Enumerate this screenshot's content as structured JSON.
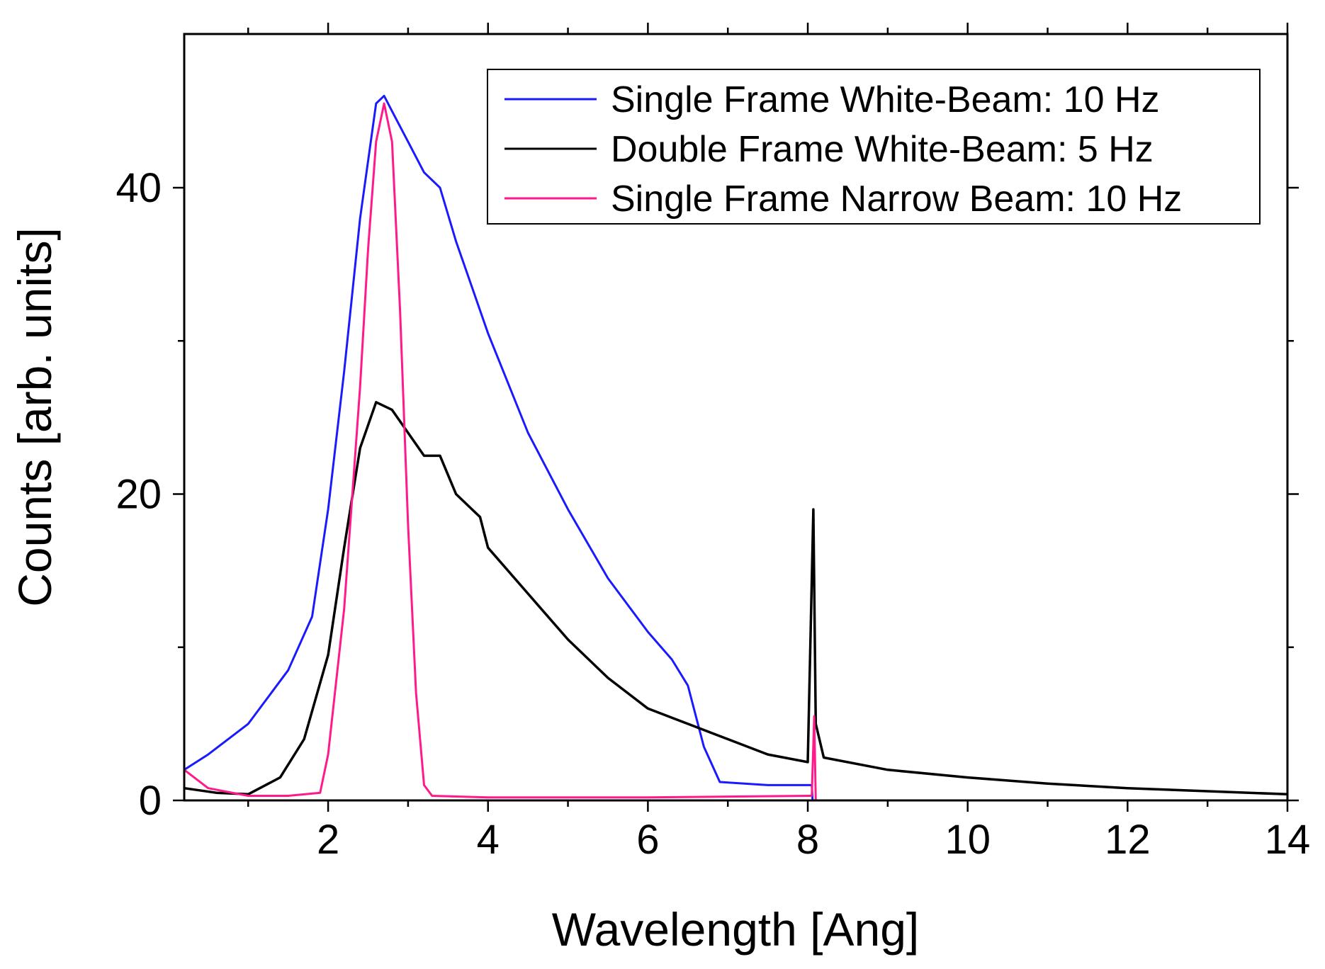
{
  "chart_data": {
    "type": "line",
    "title": "",
    "xlabel": "Wavelength [Ang]",
    "ylabel": "Counts [arb. units]",
    "xlim": [
      0.2,
      14
    ],
    "ylim": [
      0,
      50
    ],
    "x_ticks": [
      2,
      4,
      6,
      8,
      10,
      12,
      14
    ],
    "x_tick_labels": [
      "2",
      "4",
      "6",
      "8",
      "10",
      "12",
      "14"
    ],
    "y_ticks": [
      0,
      20,
      40
    ],
    "y_tick_labels": [
      "0",
      "20",
      "40"
    ],
    "legend_position": "top-right",
    "series": [
      {
        "name": "Single Frame White-Beam: 10 Hz",
        "color": "#1a1aff",
        "x": [
          0.2,
          0.5,
          1.0,
          1.5,
          1.8,
          2.0,
          2.2,
          2.4,
          2.6,
          2.7,
          2.8,
          3.0,
          3.2,
          3.4,
          3.6,
          3.8,
          4.0,
          4.5,
          5.0,
          5.5,
          6.0,
          6.3,
          6.5,
          6.7,
          6.9,
          7.5,
          8.05,
          8.06
        ],
        "y": [
          2.0,
          3.0,
          5.0,
          8.5,
          12.0,
          19.0,
          28.0,
          38.0,
          45.5,
          46.0,
          45.0,
          43.0,
          41.0,
          40.0,
          36.5,
          33.5,
          30.5,
          24.0,
          19.0,
          14.5,
          11.0,
          9.2,
          7.5,
          3.5,
          1.2,
          1.0,
          1.0,
          0.0
        ]
      },
      {
        "name": "Double Frame White-Beam: 5 Hz",
        "color": "#000000",
        "x": [
          0.2,
          0.6,
          1.0,
          1.4,
          1.7,
          2.0,
          2.2,
          2.4,
          2.6,
          2.8,
          3.0,
          3.2,
          3.4,
          3.6,
          3.8,
          3.9,
          4.0,
          4.5,
          5.0,
          5.5,
          6.0,
          6.5,
          7.0,
          7.5,
          8.0,
          8.07,
          8.1,
          8.2,
          9.0,
          10.0,
          11.0,
          12.0,
          13.0,
          14.0
        ],
        "y": [
          0.8,
          0.5,
          0.4,
          1.5,
          4.0,
          9.5,
          16.5,
          23.0,
          26.0,
          25.5,
          24.0,
          22.5,
          22.5,
          20.0,
          19.0,
          18.5,
          16.5,
          13.5,
          10.5,
          8.0,
          6.0,
          5.0,
          4.0,
          3.0,
          2.5,
          19.0,
          5.0,
          2.8,
          2.0,
          1.5,
          1.1,
          0.8,
          0.6,
          0.4
        ]
      },
      {
        "name": "Single Frame Narrow Beam: 10 Hz",
        "color": "#ff1a8c",
        "x": [
          0.2,
          0.5,
          1.0,
          1.5,
          1.9,
          2.0,
          2.2,
          2.4,
          2.5,
          2.6,
          2.7,
          2.8,
          2.9,
          3.0,
          3.1,
          3.2,
          3.3,
          4.0,
          6.0,
          8.0,
          8.05,
          8.08,
          8.1
        ],
        "y": [
          2.0,
          0.8,
          0.3,
          0.3,
          0.5,
          3.0,
          12.5,
          27.0,
          36.0,
          43.0,
          45.5,
          43.0,
          32.0,
          18.0,
          7.0,
          1.0,
          0.3,
          0.2,
          0.2,
          0.3,
          0.3,
          5.5,
          0.0
        ]
      }
    ]
  }
}
